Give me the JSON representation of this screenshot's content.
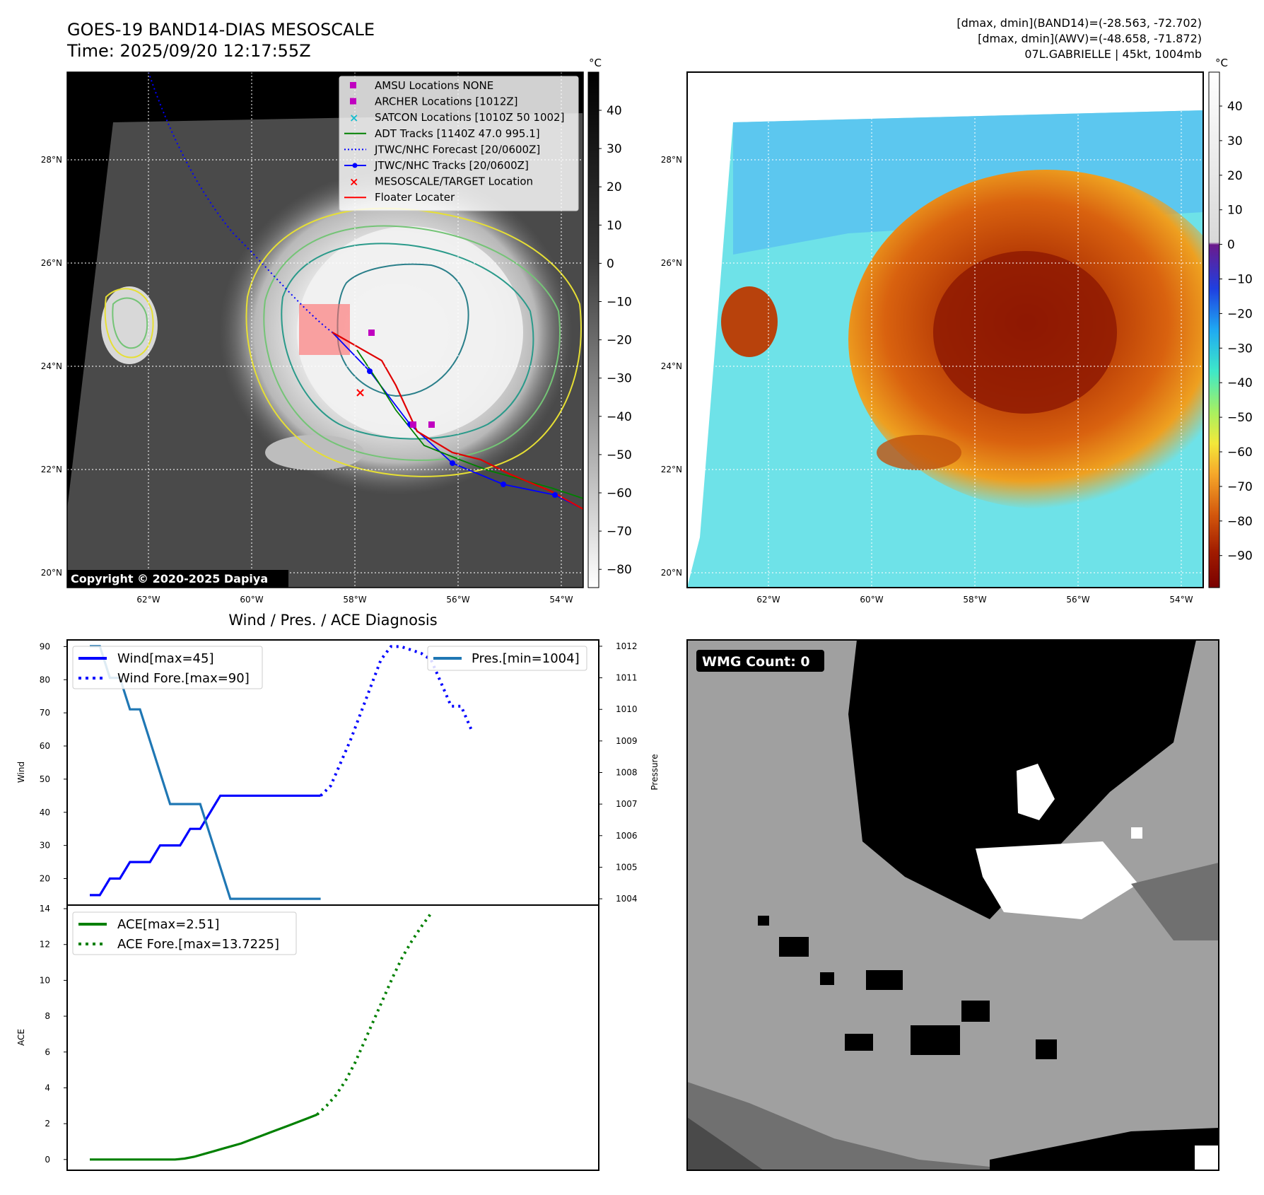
{
  "header": {
    "title": "GOES-19 BAND14-DIAS MESOSCALE",
    "time": "Time: 2025/09/20 12:17:55Z",
    "info_line1": "[dmax, dmin](BAND14)=(-28.563, -72.702)",
    "info_line2": "[dmax, dmin](AWV)=(-48.658, -71.872)",
    "info_line3": "07L.GABRIELLE | 45kt, 1004mb"
  },
  "map": {
    "lat_labels": [
      "28°N",
      "26°N",
      "24°N",
      "22°N",
      "20°N"
    ],
    "lon_labels": [
      "62°W",
      "60°W",
      "58°W",
      "56°W",
      "54°W"
    ],
    "copyright": "Copyright © 2020-2025 Dapiya",
    "legend": [
      {
        "label": "AMSU Locations NONE",
        "marker": "square",
        "color": "#c000c0"
      },
      {
        "label": "ARCHER Locations [1012Z]",
        "marker": "square",
        "color": "#c000c0"
      },
      {
        "label": "SATCON Locations [1010Z 50 1002]",
        "marker": "x",
        "color": "#17becf"
      },
      {
        "label": "ADT Tracks [1140Z 47.0 995.1]",
        "marker": "line",
        "color": "#008000"
      },
      {
        "label": "JTWC/NHC Forecast [20/0600Z]",
        "marker": "dotted",
        "color": "#0000ff"
      },
      {
        "label": "JTWC/NHC Tracks [20/0600Z]",
        "marker": "line-dot",
        "color": "#0000ff"
      },
      {
        "label": "MESOSCALE/TARGET Location",
        "marker": "x",
        "color": "#ff0000"
      },
      {
        "label": "Floater Locater",
        "marker": "line",
        "color": "#ff0000"
      }
    ]
  },
  "colorbar_gray": {
    "unit": "°C",
    "ticks": [
      "40",
      "30",
      "20",
      "10",
      "0",
      "−10",
      "−20",
      "−30",
      "−40",
      "−50",
      "−60",
      "−70",
      "−80"
    ]
  },
  "colorbar_color": {
    "unit": "°C",
    "ticks": [
      "40",
      "30",
      "20",
      "10",
      "0",
      "−10",
      "−20",
      "−30",
      "−40",
      "−50",
      "−60",
      "−70",
      "−80",
      "−90"
    ]
  },
  "wmg": {
    "badge": "WMG Count: 0"
  },
  "chart_data": [
    {
      "type": "line",
      "title": "Wind / Pres. / ACE Diagnosis",
      "ylabel": "Wind",
      "y2label": "Pressure",
      "ylim": [
        12,
        92
      ],
      "y2lim": [
        1003.8,
        1012.2
      ],
      "yticks": [
        "90",
        "80",
        "70",
        "60",
        "50",
        "40",
        "30",
        "20"
      ],
      "y2ticks": [
        "1012",
        "1011",
        "1010",
        "1009",
        "1008",
        "1007",
        "1006",
        "1005",
        "1004"
      ],
      "series": [
        {
          "name": "Wind[max=45]",
          "style": "solid",
          "color": "#0000ff",
          "values": [
            15,
            15,
            20,
            20,
            25,
            25,
            25,
            30,
            30,
            30,
            35,
            35,
            40,
            45,
            45,
            45,
            45,
            45,
            45,
            45,
            45,
            45,
            45,
            45
          ]
        },
        {
          "name": "Wind Fore.[max=90]",
          "style": "dotted",
          "color": "#0000ff",
          "x_offset": 23,
          "values": [
            45,
            48,
            55,
            62,
            70,
            78,
            86,
            90,
            90,
            89,
            88,
            86,
            79,
            72,
            72,
            65
          ]
        },
        {
          "name": "Pres.[min=1004]",
          "style": "solid",
          "color": "#1f77b4",
          "axis": "right",
          "values": [
            1012,
            1012,
            1011,
            1011,
            1010,
            1010,
            1009,
            1008,
            1007,
            1007,
            1007,
            1007,
            1006,
            1005,
            1004,
            1004,
            1004,
            1004,
            1004,
            1004,
            1004,
            1004,
            1004,
            1004
          ]
        }
      ],
      "legend_left": [
        "Wind[max=45]",
        "Wind Fore.[max=90]"
      ],
      "legend_right": "Pres.[min=1004]"
    },
    {
      "type": "line",
      "ylabel": "ACE",
      "ylim": [
        -0.6,
        14.2
      ],
      "yticks": [
        "14",
        "12",
        "10",
        "8",
        "6",
        "4",
        "2",
        "0"
      ],
      "series": [
        {
          "name": "ACE[max=2.51]",
          "style": "solid",
          "color": "#008000",
          "values": [
            0,
            0,
            0,
            0,
            0,
            0,
            0,
            0,
            0,
            0,
            0.05,
            0.15,
            0.3,
            0.45,
            0.6,
            0.75,
            0.9,
            1.1,
            1.3,
            1.5,
            1.7,
            1.9,
            2.1,
            2.3,
            2.51
          ]
        },
        {
          "name": "ACE Fore.[max=13.7225]",
          "style": "dotted",
          "color": "#008000",
          "x_offset": 24,
          "values": [
            2.51,
            3.0,
            3.6,
            4.4,
            5.4,
            6.6,
            7.8,
            9.0,
            10.2,
            11.3,
            12.2,
            13.0,
            13.7225
          ]
        }
      ],
      "legend": [
        "ACE[max=2.51]",
        "ACE Fore.[max=13.7225]"
      ]
    }
  ]
}
